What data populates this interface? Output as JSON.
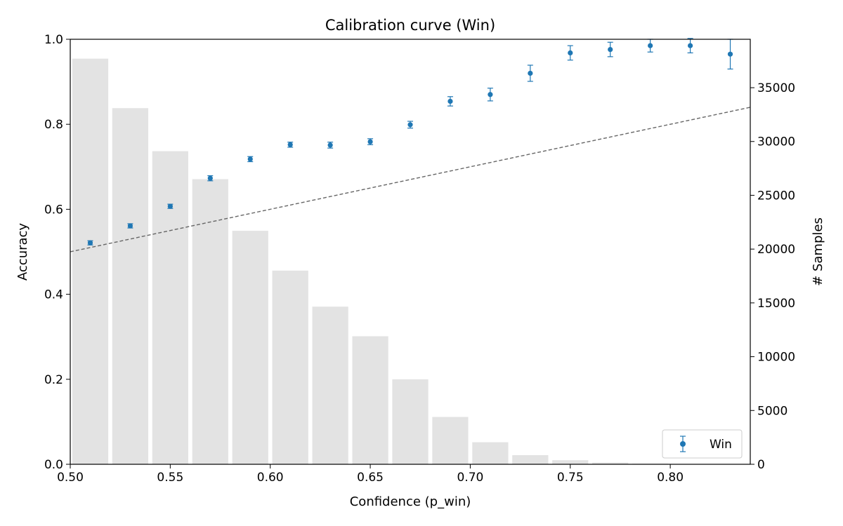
{
  "chart_data": {
    "type": "scatter",
    "title": "Calibration curve (Win)",
    "xlabel": "Confidence (p_win)",
    "ylabel": "Accuracy",
    "y2label": "# Samples",
    "xlim": [
      0.5,
      0.84
    ],
    "ylim": [
      0.0,
      1.0
    ],
    "y2lim": [
      0,
      39500
    ],
    "x_ticks": [
      "0.50",
      "0.55",
      "0.60",
      "0.65",
      "0.70",
      "0.75",
      "0.80"
    ],
    "y_ticks": [
      "0.0",
      "0.2",
      "0.4",
      "0.6",
      "0.8",
      "1.0"
    ],
    "y2_ticks": [
      "0",
      "5000",
      "10000",
      "15000",
      "20000",
      "25000",
      "30000",
      "35000"
    ],
    "grid": false,
    "legend_position": "bottom-right",
    "colors": {
      "accuracy": "#1f77b4",
      "histogram": "#e3e3e3",
      "reference": "#666666"
    },
    "reference_line": {
      "x": [
        0.5,
        0.84
      ],
      "y": [
        0.5,
        0.84
      ]
    },
    "series": [
      {
        "name": "Win",
        "x": [
          0.51,
          0.53,
          0.55,
          0.57,
          0.59,
          0.61,
          0.63,
          0.65,
          0.67,
          0.69,
          0.71,
          0.73,
          0.75,
          0.77,
          0.79,
          0.81,
          0.83
        ],
        "y": [
          0.521,
          0.561,
          0.607,
          0.673,
          0.718,
          0.752,
          0.751,
          0.759,
          0.799,
          0.854,
          0.87,
          0.92,
          0.968,
          0.976,
          0.985,
          0.985,
          0.965
        ],
        "yerr": [
          0.005,
          0.005,
          0.005,
          0.006,
          0.006,
          0.006,
          0.007,
          0.007,
          0.008,
          0.011,
          0.015,
          0.019,
          0.017,
          0.017,
          0.015,
          0.017,
          0.035
        ]
      }
    ],
    "histogram": {
      "name": "# Samples",
      "x": [
        0.51,
        0.53,
        0.55,
        0.57,
        0.59,
        0.61,
        0.63,
        0.65,
        0.67,
        0.69,
        0.71,
        0.73,
        0.75,
        0.77,
        0.79,
        0.81,
        0.83
      ],
      "counts": [
        37700,
        33100,
        29100,
        26500,
        21700,
        18000,
        14650,
        11900,
        7900,
        4400,
        2050,
        850,
        380,
        160,
        60,
        25,
        10
      ],
      "bin_width": 0.02
    }
  }
}
